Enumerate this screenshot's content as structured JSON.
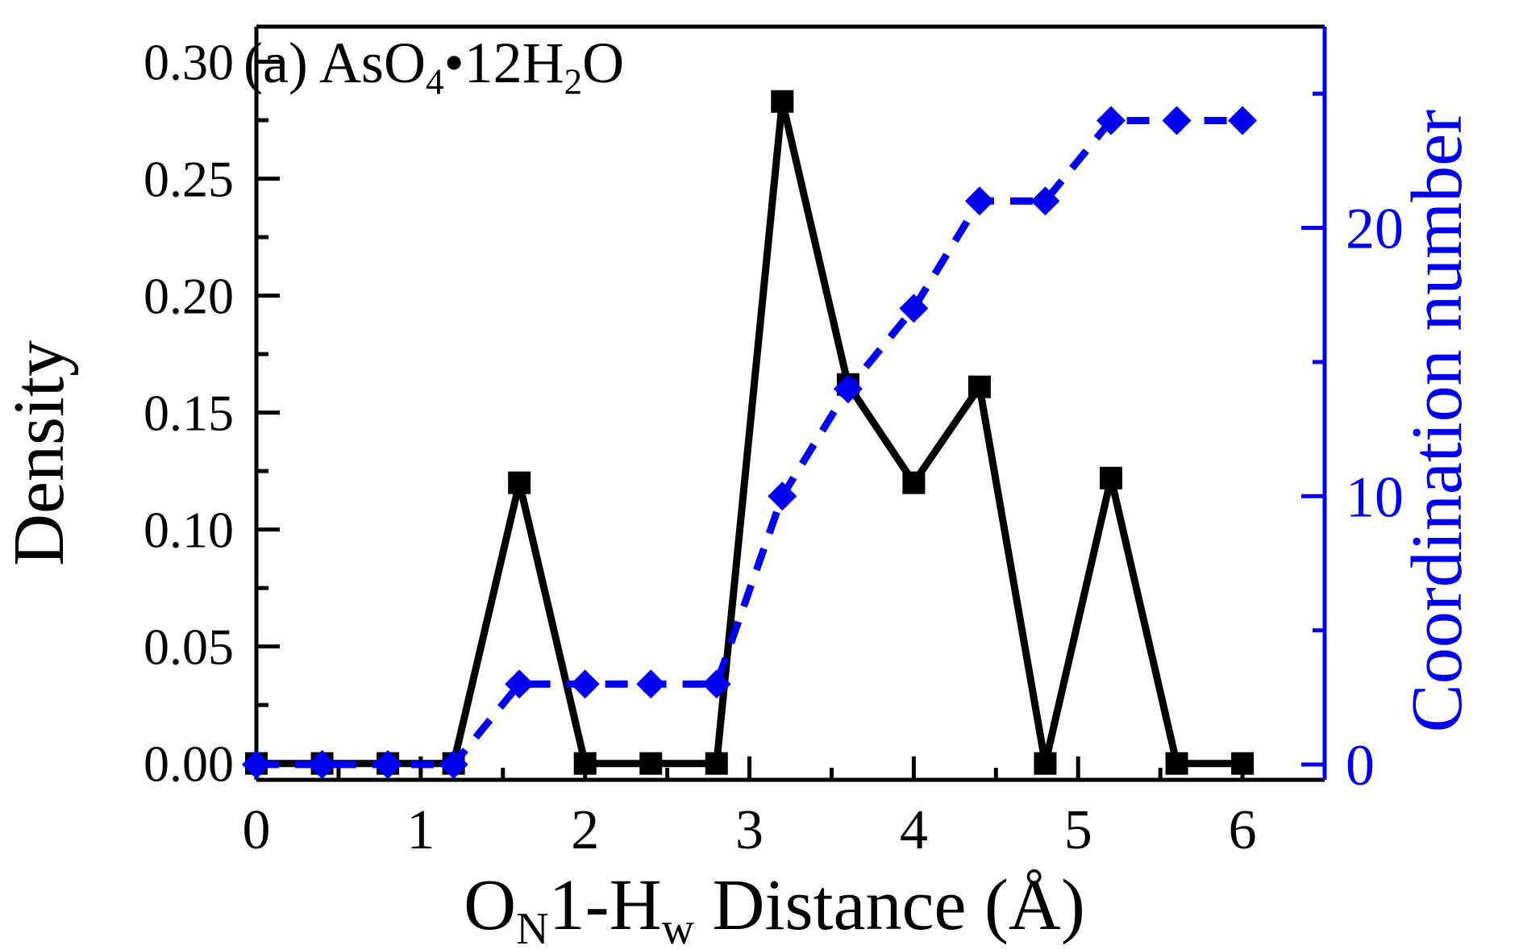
{
  "figure": {
    "background": "#ffffff",
    "panel_label_parts": [
      {
        "t": "(a) AsO"
      },
      {
        "t": "4",
        "sub": true
      },
      {
        "t": "•12H"
      },
      {
        "t": "2",
        "sub": true
      },
      {
        "t": "O"
      }
    ],
    "xlabel_parts": [
      {
        "t": "O"
      },
      {
        "t": "N",
        "sub": true
      },
      {
        "t": "1-H"
      },
      {
        "t": "w",
        "sub": true
      },
      {
        "t": " Distance (Å)"
      }
    ]
  },
  "colors": {
    "density_series": "#000000",
    "coordination_series": "#0000ee",
    "frame": "#000000",
    "right_axis": "#0000ee",
    "background": "#ffffff"
  },
  "chart_data": {
    "type": "line",
    "panel_label": "(a) AsO4•12H2O",
    "xlabel": "ON1-Hw Distance (Å)",
    "ylabel_left": "Density",
    "ylabel_right": "Coordination number",
    "grid": false,
    "legend": "none",
    "x": [
      0,
      0.4,
      0.8,
      1.2,
      1.6,
      2.0,
      2.4,
      2.8,
      3.2,
      3.6,
      4.0,
      4.4,
      4.8,
      5.2,
      5.6,
      6.0
    ],
    "series": [
      {
        "name": "Density",
        "yaxis": "left",
        "color": "#000000",
        "line_style": "solid",
        "marker": "square",
        "values": [
          0,
          0,
          0,
          0,
          0.12,
          0,
          0,
          0,
          0.283,
          0.162,
          0.12,
          0.161,
          0,
          0.122,
          0,
          0
        ]
      },
      {
        "name": "Coordination number",
        "yaxis": "right",
        "color": "#0000ee",
        "line_style": "dashed",
        "marker": "diamond",
        "values": [
          0,
          0,
          0,
          0,
          3,
          3,
          3,
          3,
          10,
          14,
          17,
          21,
          21,
          24,
          24,
          24
        ]
      }
    ],
    "xlim": [
      0,
      6.5
    ],
    "ylim_left": [
      -0.007,
      0.315
    ],
    "ylim_right": [
      -0.57,
      27.5
    ],
    "x_major_ticks": [
      {
        "v": 0,
        "label": "0"
      },
      {
        "v": 1,
        "label": "1"
      },
      {
        "v": 2,
        "label": "2"
      },
      {
        "v": 3,
        "label": "3"
      },
      {
        "v": 4,
        "label": "4"
      },
      {
        "v": 5,
        "label": "5"
      },
      {
        "v": 6,
        "label": "6"
      }
    ],
    "x_minor_ticks": [
      0.5,
      1.5,
      2.5,
      3.5,
      4.5,
      5.5
    ],
    "yleft_major_ticks": [
      {
        "v": 0.0,
        "label": "0.00"
      },
      {
        "v": 0.05,
        "label": "0.05"
      },
      {
        "v": 0.1,
        "label": "0.10"
      },
      {
        "v": 0.15,
        "label": "0.15"
      },
      {
        "v": 0.2,
        "label": "0.20"
      },
      {
        "v": 0.25,
        "label": "0.25"
      },
      {
        "v": 0.3,
        "label": "0.30"
      }
    ],
    "yleft_minor_ticks": [
      0.025,
      0.075,
      0.125,
      0.175,
      0.225,
      0.275
    ],
    "yright_major_ticks": [
      {
        "v": 0,
        "label": "0"
      },
      {
        "v": 10,
        "label": "10"
      },
      {
        "v": 20,
        "label": "20"
      }
    ],
    "yright_minor_ticks": [
      5,
      15,
      25
    ]
  }
}
